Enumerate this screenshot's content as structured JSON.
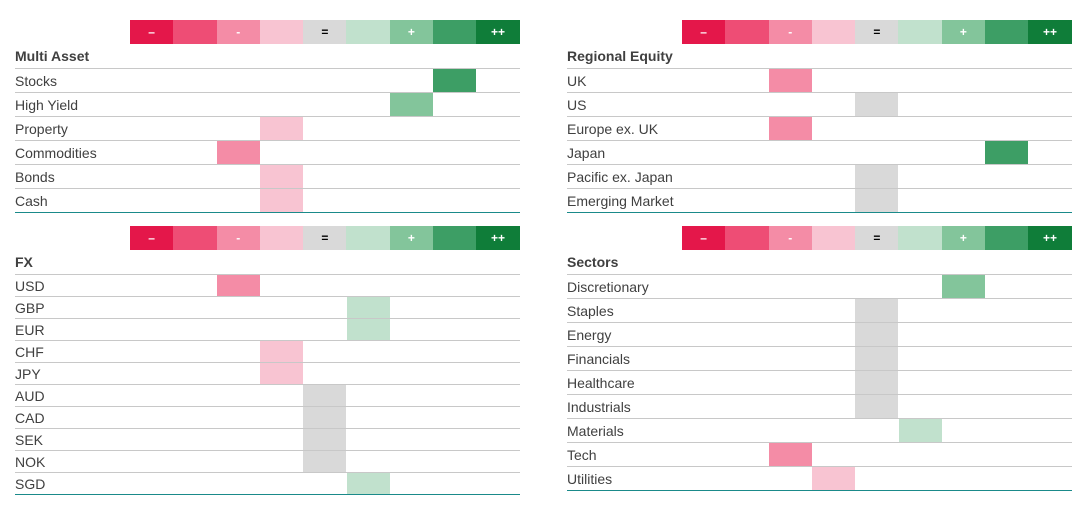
{
  "scale": {
    "labels": [
      "–",
      "",
      "-",
      "",
      "=",
      "",
      "+",
      "",
      "++"
    ],
    "colors": [
      "#e4174a",
      "#ee4d75",
      "#f48ca6",
      "#f8c4d2",
      "#d9d9d9",
      "#c1e1cd",
      "#83c59b",
      "#3d9e65",
      "#0f7d39"
    ]
  },
  "chart_data": [
    {
      "type": "table",
      "title": "Multi Asset",
      "scale_levels": [
        "--",
        "-",
        "-",
        "-",
        "=",
        "+",
        "+",
        "+",
        "++"
      ],
      "rows": [
        {
          "label": "Stocks",
          "level": 7
        },
        {
          "label": "High Yield",
          "level": 6
        },
        {
          "label": "Property",
          "level": 3
        },
        {
          "label": "Commodities",
          "level": 2
        },
        {
          "label": "Bonds",
          "level": 3
        },
        {
          "label": "Cash",
          "level": 3
        }
      ]
    },
    {
      "type": "table",
      "title": "Regional Equity",
      "rows": [
        {
          "label": "UK",
          "level": 2
        },
        {
          "label": "US",
          "level": 4
        },
        {
          "label": "Europe ex. UK",
          "level": 2
        },
        {
          "label": "Japan",
          "level": 7
        },
        {
          "label": "Pacific ex. Japan",
          "level": 4
        },
        {
          "label": "Emerging Market",
          "level": 4
        }
      ]
    },
    {
      "type": "table",
      "title": "FX",
      "rows": [
        {
          "label": "USD",
          "level": 2
        },
        {
          "label": "GBP",
          "level": 5
        },
        {
          "label": "EUR",
          "level": 5
        },
        {
          "label": "CHF",
          "level": 3
        },
        {
          "label": "JPY",
          "level": 3
        },
        {
          "label": "AUD",
          "level": 4
        },
        {
          "label": "CAD",
          "level": 4
        },
        {
          "label": "SEK",
          "level": 4
        },
        {
          "label": "NOK",
          "level": 4
        },
        {
          "label": "SGD",
          "level": 5
        }
      ]
    },
    {
      "type": "table",
      "title": "Sectors",
      "rows": [
        {
          "label": "Discretionary",
          "level": 6
        },
        {
          "label": "Staples",
          "level": 4
        },
        {
          "label": "Energy",
          "level": 4
        },
        {
          "label": "Financials",
          "level": 4
        },
        {
          "label": "Healthcare",
          "level": 4
        },
        {
          "label": "Industrials",
          "level": 4
        },
        {
          "label": "Materials",
          "level": 5
        },
        {
          "label": "Tech",
          "level": 2
        },
        {
          "label": "Utilities",
          "level": 3
        }
      ]
    }
  ]
}
